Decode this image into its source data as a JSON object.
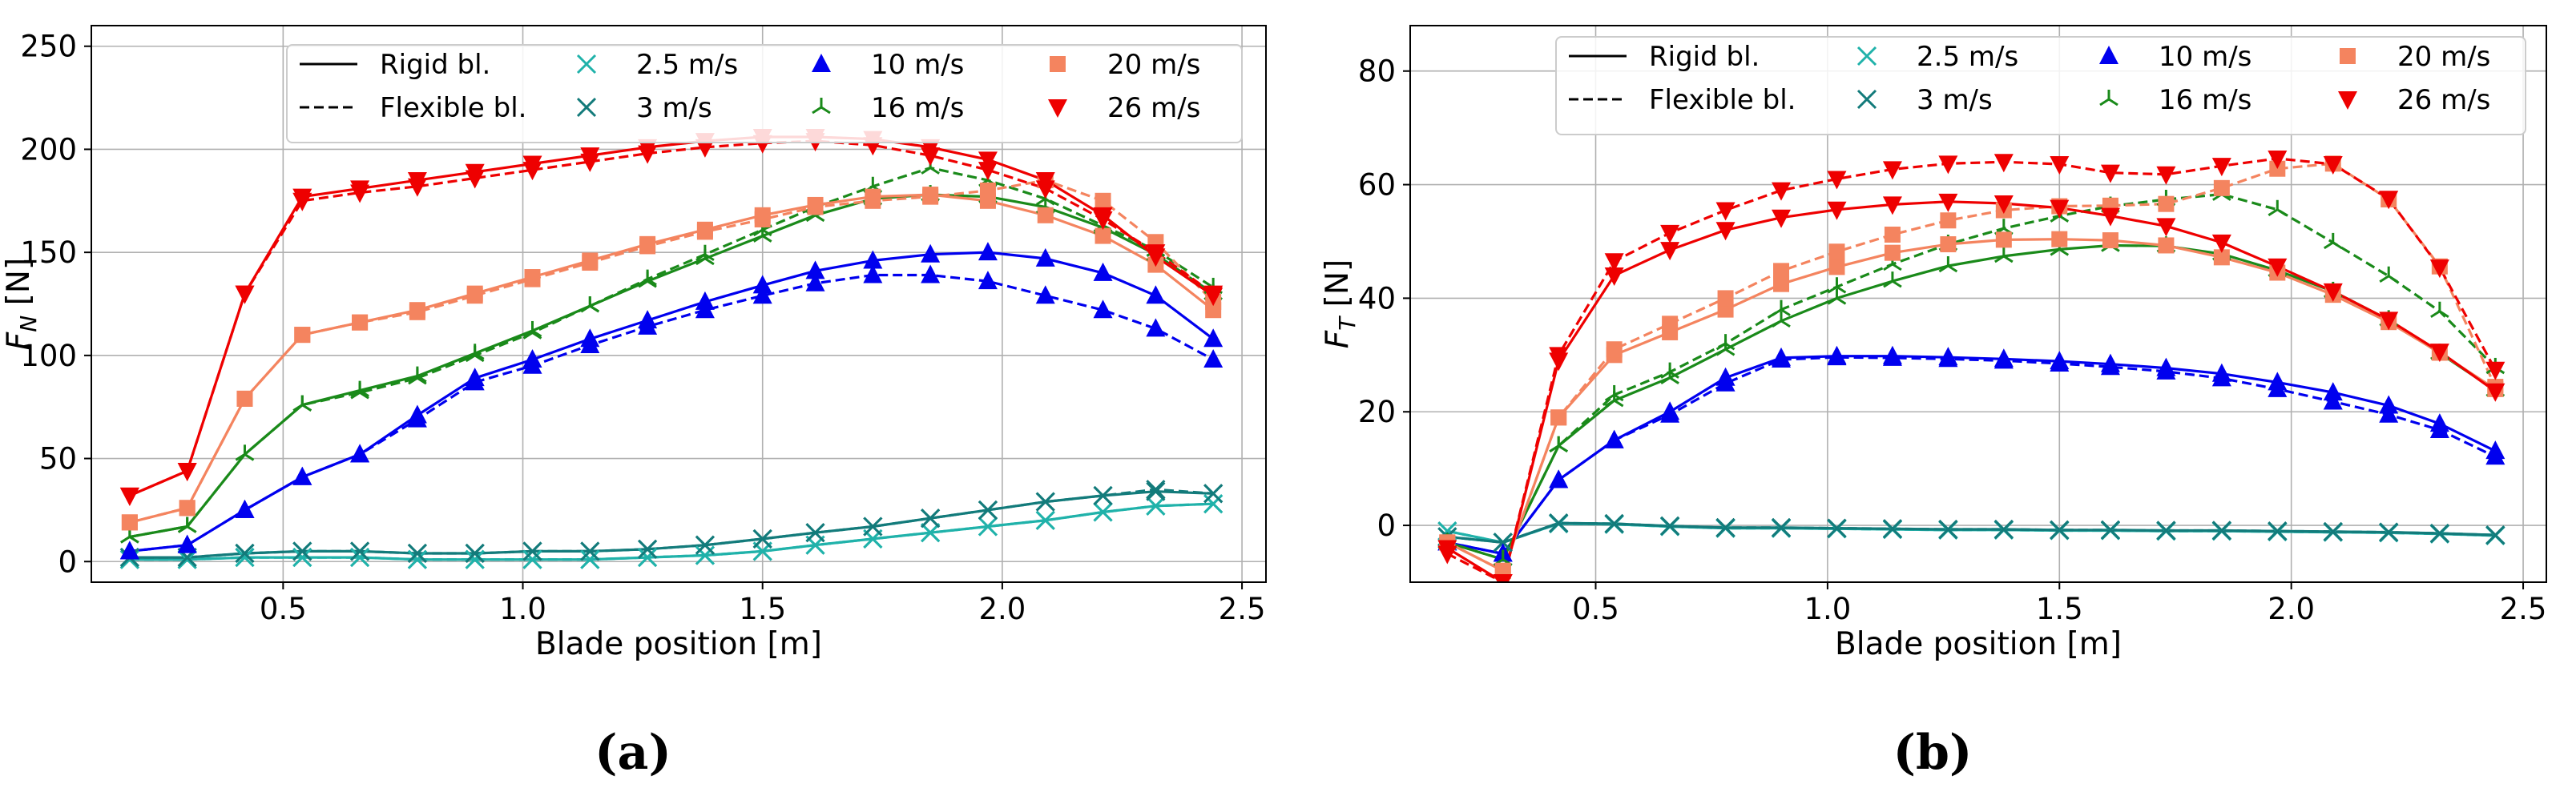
{
  "chart_data": [
    {
      "id": "a",
      "type": "line",
      "panel_label": "(a)",
      "xlabel": "Blade position [m]",
      "ylabel_main": "F",
      "ylabel_sub": "N",
      "ylabel_unit": " [N]",
      "xlim": [
        0.1,
        2.55
      ],
      "ylim": [
        -10,
        260
      ],
      "xticks": [
        0.5,
        1.0,
        1.5,
        2.0,
        2.5
      ],
      "xtick_labels": [
        "0.5",
        "1.0",
        "1.5",
        "2.0",
        "2.5"
      ],
      "yticks": [
        0,
        50,
        100,
        150,
        200,
        250
      ],
      "ytick_labels": [
        "0",
        "50",
        "100",
        "150",
        "200",
        "250"
      ],
      "grid": true,
      "legend_position": "top-right",
      "x": [
        0.18,
        0.3,
        0.42,
        0.54,
        0.66,
        0.78,
        0.9,
        1.02,
        1.14,
        1.26,
        1.38,
        1.5,
        1.61,
        1.73,
        1.85,
        1.97,
        2.09,
        2.21,
        2.32,
        2.44
      ],
      "series": [
        {
          "name": "2.5 m/s",
          "style": "rigid",
          "marker": "x",
          "color": "#20b2aa",
          "values": [
            1,
            1,
            2,
            2,
            2,
            1,
            1,
            1,
            1,
            2,
            3,
            5,
            8,
            11,
            14,
            17,
            20,
            24,
            27,
            28
          ]
        },
        {
          "name": "2.5 m/s",
          "style": "flexible",
          "marker": "x",
          "color": "#20b2aa",
          "values": [
            1,
            1,
            2,
            2,
            2,
            1,
            1,
            1,
            1,
            2,
            3,
            5,
            8,
            11,
            14,
            17,
            20,
            24,
            27,
            28
          ]
        },
        {
          "name": "3 m/s",
          "style": "rigid",
          "marker": "x",
          "color": "#137b7b",
          "values": [
            2,
            2,
            4,
            5,
            5,
            4,
            4,
            5,
            5,
            6,
            8,
            11,
            14,
            17,
            21,
            25,
            29,
            32,
            34,
            33
          ]
        },
        {
          "name": "3 m/s",
          "style": "flexible",
          "marker": "x",
          "color": "#137b7b",
          "values": [
            2,
            2,
            4,
            5,
            5,
            4,
            4,
            5,
            5,
            6,
            8,
            11,
            14,
            17,
            21,
            25,
            29,
            32,
            35,
            33
          ]
        },
        {
          "name": "10 m/s",
          "style": "rigid",
          "marker": "^",
          "color": "#0000ee",
          "values": [
            5,
            8,
            25,
            41,
            52,
            71,
            89,
            98,
            108,
            117,
            126,
            134,
            141,
            146,
            149,
            150,
            147,
            140,
            129,
            108
          ]
        },
        {
          "name": "10 m/s",
          "style": "flexible",
          "marker": "^",
          "color": "#0000ee",
          "values": [
            5,
            8,
            25,
            41,
            52,
            69,
            87,
            95,
            105,
            114,
            122,
            129,
            135,
            139,
            139,
            136,
            129,
            122,
            113,
            98
          ]
        },
        {
          "name": "16 m/s",
          "style": "rigid",
          "marker": "tri",
          "color": "#1a8a1a",
          "values": [
            12,
            17,
            52,
            76,
            83,
            90,
            101,
            112,
            124,
            136,
            147,
            158,
            168,
            176,
            178,
            177,
            172,
            162,
            149,
            130
          ]
        },
        {
          "name": "16 m/s",
          "style": "flexible",
          "marker": "tri",
          "color": "#1a8a1a",
          "values": [
            12,
            17,
            52,
            76,
            82,
            89,
            100,
            111,
            124,
            137,
            149,
            161,
            172,
            182,
            191,
            185,
            176,
            163,
            151,
            133
          ]
        },
        {
          "name": "20 m/s",
          "style": "rigid",
          "marker": "s",
          "color": "#f4845f",
          "values": [
            19,
            26,
            79,
            110,
            116,
            122,
            130,
            138,
            146,
            154,
            161,
            168,
            173,
            177,
            178,
            175,
            168,
            158,
            144,
            122
          ]
        },
        {
          "name": "20 m/s",
          "style": "flexible",
          "marker": "s",
          "color": "#f4845f",
          "values": [
            19,
            26,
            79,
            110,
            116,
            121,
            129,
            137,
            145,
            153,
            160,
            166,
            172,
            175,
            177,
            180,
            185,
            175,
            155,
            126
          ]
        },
        {
          "name": "26 m/s",
          "style": "rigid",
          "marker": "v",
          "color": "#ee0000",
          "values": [
            32,
            44,
            130,
            177,
            181,
            185,
            189,
            193,
            197,
            201,
            204,
            206,
            206,
            205,
            201,
            195,
            185,
            168,
            148,
            129
          ]
        },
        {
          "name": "26 m/s",
          "style": "flexible",
          "marker": "v",
          "color": "#ee0000",
          "values": [
            32,
            44,
            130,
            175,
            179,
            182,
            186,
            190,
            194,
            198,
            201,
            203,
            204,
            202,
            197,
            190,
            181,
            166,
            150,
            130
          ]
        }
      ]
    },
    {
      "id": "b",
      "type": "line",
      "panel_label": "(b)",
      "xlabel": "Blade position [m]",
      "ylabel_main": "F",
      "ylabel_sub": "T",
      "ylabel_unit": " [N]",
      "xlim": [
        0.1,
        2.55
      ],
      "ylim": [
        -10,
        88
      ],
      "xticks": [
        0.5,
        1.0,
        1.5,
        2.0,
        2.5
      ],
      "xtick_labels": [
        "0.5",
        "1.0",
        "1.5",
        "2.0",
        "2.5"
      ],
      "yticks": [
        0,
        20,
        40,
        60,
        80
      ],
      "ytick_labels": [
        "0",
        "20",
        "40",
        "60",
        "80"
      ],
      "grid": true,
      "legend_position": "top-right",
      "x": [
        0.18,
        0.3,
        0.42,
        0.54,
        0.66,
        0.78,
        0.9,
        1.02,
        1.14,
        1.26,
        1.38,
        1.5,
        1.61,
        1.73,
        1.85,
        1.97,
        2.09,
        2.21,
        2.32,
        2.44
      ],
      "series": [
        {
          "name": "2.5 m/s",
          "style": "rigid",
          "marker": "x",
          "color": "#20b2aa",
          "values": [
            -1,
            -3,
            0.3,
            0.2,
            -0.2,
            -0.5,
            -0.5,
            -0.6,
            -0.7,
            -0.8,
            -0.8,
            -0.9,
            -0.9,
            -1.0,
            -1.0,
            -1.1,
            -1.2,
            -1.3,
            -1.5,
            -1.8
          ]
        },
        {
          "name": "2.5 m/s",
          "style": "flexible",
          "marker": "x",
          "color": "#20b2aa",
          "values": [
            -1,
            -3,
            0.3,
            0.2,
            -0.2,
            -0.5,
            -0.5,
            -0.6,
            -0.7,
            -0.8,
            -0.8,
            -0.9,
            -0.9,
            -1.0,
            -1.0,
            -1.1,
            -1.2,
            -1.3,
            -1.5,
            -1.8
          ]
        },
        {
          "name": "3 m/s",
          "style": "rigid",
          "marker": "x",
          "color": "#137b7b",
          "values": [
            -2,
            -3,
            0.4,
            0.3,
            -0.1,
            -0.4,
            -0.4,
            -0.5,
            -0.6,
            -0.7,
            -0.7,
            -0.8,
            -0.8,
            -0.9,
            -0.9,
            -1.0,
            -1.1,
            -1.2,
            -1.4,
            -1.7
          ]
        },
        {
          "name": "3 m/s",
          "style": "flexible",
          "marker": "x",
          "color": "#137b7b",
          "values": [
            -2,
            -3,
            0.4,
            0.3,
            -0.1,
            -0.4,
            -0.4,
            -0.5,
            -0.6,
            -0.7,
            -0.7,
            -0.8,
            -0.8,
            -0.9,
            -0.9,
            -1.0,
            -1.1,
            -1.2,
            -1.4,
            -1.7
          ]
        },
        {
          "name": "10 m/s",
          "style": "rigid",
          "marker": "^",
          "color": "#0000ee",
          "values": [
            -3,
            -5,
            8,
            15,
            20,
            26,
            29.5,
            29.8,
            29.8,
            29.6,
            29.3,
            28.9,
            28.4,
            27.7,
            26.7,
            25.2,
            23.4,
            21.1,
            17.9,
            13.1
          ]
        },
        {
          "name": "10 m/s",
          "style": "flexible",
          "marker": "^",
          "color": "#0000ee",
          "values": [
            -3,
            -5,
            8,
            15,
            19.5,
            25,
            29.2,
            29.6,
            29.5,
            29.3,
            29.0,
            28.5,
            27.9,
            27.1,
            25.9,
            24.0,
            21.8,
            19.5,
            16.8,
            12.1
          ]
        },
        {
          "name": "16 m/s",
          "style": "rigid",
          "marker": "tri",
          "color": "#1a8a1a",
          "values": [
            -3,
            -6,
            14,
            22,
            26,
            31,
            36,
            40,
            43,
            45.7,
            47.4,
            48.6,
            49.3,
            49.2,
            47.8,
            44.9,
            41.2,
            36.2,
            30.3,
            23.8
          ]
        },
        {
          "name": "16 m/s",
          "style": "flexible",
          "marker": "tri",
          "color": "#1a8a1a",
          "values": [
            -3,
            -6,
            14,
            23,
            27,
            32,
            38,
            42,
            46,
            49.5,
            52.3,
            54.5,
            56.2,
            57.4,
            58.3,
            55.6,
            49.8,
            43.9,
            37.7,
            27.8
          ]
        },
        {
          "name": "20 m/s",
          "style": "rigid",
          "marker": "s",
          "color": "#f4845f",
          "values": [
            -3,
            -8,
            19,
            30,
            34,
            38,
            42.5,
            45.5,
            48,
            49.5,
            50.3,
            50.4,
            50.2,
            49.3,
            47.2,
            44.5,
            40.6,
            35.8,
            30.4,
            24
          ]
        },
        {
          "name": "20 m/s",
          "style": "flexible",
          "marker": "s",
          "color": "#f4845f",
          "values": [
            -3,
            -8,
            19,
            31,
            35.5,
            40,
            44.8,
            48.2,
            51.2,
            53.7,
            55.5,
            56.2,
            56.3,
            56.6,
            59.4,
            62.8,
            63.7,
            57.4,
            45.6,
            24.4
          ]
        },
        {
          "name": "26 m/s",
          "style": "rigid",
          "marker": "v",
          "color": "#ee0000",
          "values": [
            -4,
            -10,
            29,
            44,
            48.5,
            52,
            54.2,
            55.6,
            56.5,
            57.0,
            56.7,
            55.9,
            54.5,
            52.7,
            49.8,
            45.6,
            41.2,
            36.2,
            30.6,
            23.6
          ]
        },
        {
          "name": "26 m/s",
          "style": "flexible",
          "marker": "v",
          "color": "#ee0000",
          "values": [
            -5,
            -10,
            30,
            46.5,
            51.5,
            55.5,
            59,
            61,
            62.7,
            63.7,
            64.0,
            63.6,
            62.1,
            61.8,
            63.3,
            64.6,
            63.6,
            57.5,
            45.4,
            27.4
          ]
        }
      ]
    }
  ],
  "legend": {
    "rigid_label": "Rigid bl.",
    "flexible_label": "Flexible bl.",
    "items": [
      {
        "label": "2.5 m/s",
        "marker": "x",
        "color": "#20b2aa"
      },
      {
        "label": "3 m/s",
        "marker": "x",
        "color": "#137b7b"
      },
      {
        "label": "10 m/s",
        "marker": "^",
        "color": "#0000ee"
      },
      {
        "label": "16 m/s",
        "marker": "tri",
        "color": "#1a8a1a"
      },
      {
        "label": "20 m/s",
        "marker": "s",
        "color": "#f4845f"
      },
      {
        "label": "26 m/s",
        "marker": "v",
        "color": "#ee0000"
      }
    ]
  }
}
